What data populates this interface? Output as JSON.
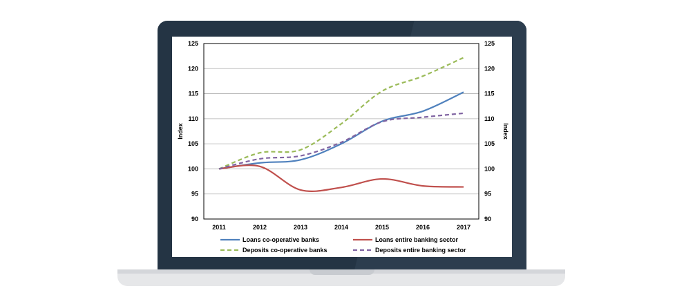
{
  "chart_data": {
    "type": "line",
    "title": "",
    "xlabel": "",
    "ylabel": "Index",
    "ylabel_right": "Index",
    "ylim": [
      90,
      125
    ],
    "yticks": [
      90,
      95,
      100,
      105,
      110,
      115,
      120,
      125
    ],
    "categories": [
      "2011",
      "2012",
      "2013",
      "2014",
      "2015",
      "2016",
      "2017"
    ],
    "grid": "horizontal",
    "legend": "bottom",
    "series": [
      {
        "name": "Loans co-operative banks",
        "color": "#4f81bd",
        "dash": "solid",
        "values": [
          100.0,
          101.2,
          101.8,
          105.0,
          109.5,
          111.5,
          115.3
        ]
      },
      {
        "name": "Loans entire banking sector",
        "color": "#c0504d",
        "dash": "solid",
        "values": [
          100.0,
          100.5,
          95.8,
          96.3,
          98.0,
          96.6,
          96.4
        ]
      },
      {
        "name": "Deposits co-operative banks",
        "color": "#9bbb59",
        "dash": "dashed",
        "values": [
          100.0,
          103.2,
          103.8,
          109.0,
          115.5,
          118.5,
          122.2
        ]
      },
      {
        "name": "Deposits entire banking sector",
        "color": "#8064a2",
        "dash": "dashed",
        "values": [
          100.0,
          102.0,
          102.6,
          105.3,
          109.4,
          110.3,
          111.1
        ]
      }
    ]
  }
}
